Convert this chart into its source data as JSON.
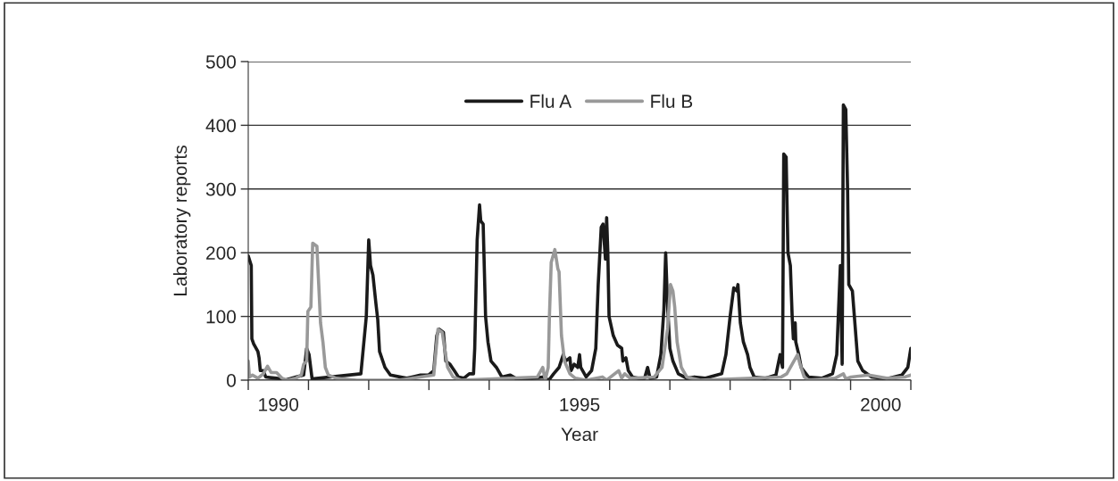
{
  "chart_data": {
    "type": "line",
    "xlabel": "Year",
    "ylabel": "Laboratory reports",
    "xlim": [
      1990,
      2001
    ],
    "ylim": [
      0,
      500
    ],
    "yticks": [
      0,
      100,
      200,
      300,
      400,
      500
    ],
    "xticks": [
      {
        "value": 1990,
        "label": null
      },
      {
        "value": 1991,
        "label": null
      },
      {
        "value": 1992,
        "label": null
      },
      {
        "value": 1993,
        "label": null
      },
      {
        "value": 1994,
        "label": null
      },
      {
        "value": 1995,
        "label": null
      },
      {
        "value": 1996,
        "label": null
      },
      {
        "value": 1997,
        "label": null
      },
      {
        "value": 1998,
        "label": null
      },
      {
        "value": 1999,
        "label": null
      },
      {
        "value": 2000,
        "label": null
      },
      {
        "value": 2001,
        "label": null
      },
      {
        "value": 1990.5,
        "label": "1990"
      },
      {
        "value": 1995.5,
        "label": "1995"
      },
      {
        "value": 2000.5,
        "label": "2000"
      }
    ],
    "grid": "y",
    "legend": "top",
    "line_style": "solid",
    "marker": "none",
    "series": [
      {
        "name": "Flu A",
        "color": "#1a1a1a",
        "x": [
          1990.0,
          1990.05,
          1990.06,
          1990.09,
          1990.16,
          1990.18,
          1990.2,
          1990.25,
          1990.29,
          1990.47,
          1990.61,
          1990.79,
          1990.92,
          1990.97,
          1991.01,
          1991.06,
          1991.87,
          1991.96,
          1992.0,
          1992.03,
          1992.07,
          1992.12,
          1992.15,
          1992.18,
          1992.27,
          1992.36,
          1992.63,
          1992.72,
          1992.86,
          1992.99,
          1993.08,
          1993.13,
          1993.17,
          1993.24,
          1993.28,
          1993.35,
          1993.42,
          1993.49,
          1993.58,
          1993.67,
          1993.74,
          1993.76,
          1993.8,
          1993.84,
          1993.86,
          1993.9,
          1993.94,
          1993.98,
          1994.03,
          1994.12,
          1994.21,
          1994.35,
          1994.44,
          1994.71,
          1994.89,
          1994.99,
          1995.07,
          1995.16,
          1995.23,
          1995.27,
          1995.34,
          1995.36,
          1995.41,
          1995.47,
          1995.5,
          1995.52,
          1995.61,
          1995.7,
          1995.77,
          1995.81,
          1995.86,
          1995.89,
          1995.93,
          1995.95,
          1995.97,
          1995.99,
          1996.06,
          1996.13,
          1996.2,
          1996.22,
          1996.27,
          1996.31,
          1996.38,
          1996.47,
          1996.58,
          1996.63,
          1996.67,
          1996.78,
          1996.85,
          1996.9,
          1996.93,
          1996.96,
          1997.0,
          1997.05,
          1997.14,
          1997.28,
          1997.41,
          1997.59,
          1997.86,
          1997.93,
          1998.0,
          1998.06,
          1998.11,
          1998.13,
          1998.17,
          1998.22,
          1998.29,
          1998.33,
          1998.4,
          1998.58,
          1998.76,
          1998.83,
          1998.87,
          1998.89,
          1998.93,
          1998.96,
          1999.0,
          1999.03,
          1999.05,
          1999.08,
          1999.09,
          1999.14,
          1999.18,
          1999.3,
          1999.52,
          1999.7,
          1999.77,
          1999.83,
          1999.86,
          1999.88,
          1999.92,
          1999.95,
          1999.97,
          2000.03,
          2000.12,
          2000.2,
          2000.35,
          2000.6,
          2000.85,
          2000.95,
          2001.0
        ],
        "values": [
          195,
          180,
          65,
          57,
          45,
          35,
          15,
          15,
          5,
          3,
          0,
          5,
          8,
          50,
          40,
          2,
          10,
          100,
          220,
          180,
          165,
          120,
          95,
          45,
          20,
          8,
          3,
          5,
          8,
          8,
          15,
          70,
          80,
          75,
          30,
          25,
          15,
          5,
          3,
          10,
          10,
          50,
          220,
          275,
          250,
          245,
          100,
          60,
          30,
          20,
          5,
          8,
          3,
          3,
          5,
          0,
          10,
          20,
          40,
          30,
          35,
          15,
          25,
          20,
          40,
          20,
          5,
          15,
          50,
          150,
          240,
          245,
          190,
          255,
          200,
          100,
          70,
          55,
          50,
          30,
          35,
          15,
          5,
          3,
          3,
          20,
          3,
          5,
          40,
          110,
          200,
          120,
          50,
          30,
          10,
          3,
          5,
          3,
          10,
          40,
          100,
          145,
          140,
          150,
          90,
          60,
          40,
          20,
          5,
          3,
          8,
          40,
          20,
          355,
          350,
          200,
          180,
          100,
          65,
          90,
          60,
          40,
          20,
          5,
          3,
          10,
          40,
          180,
          25,
          432,
          425,
          300,
          150,
          140,
          30,
          15,
          5,
          2,
          8,
          20,
          50
        ]
      },
      {
        "name": "Flu B",
        "color": "#999999",
        "x": [
          1990.0,
          1990.02,
          1990.07,
          1990.16,
          1990.25,
          1990.32,
          1990.38,
          1990.47,
          1990.56,
          1990.65,
          1990.79,
          1990.88,
          1990.92,
          1990.97,
          1990.99,
          1991.04,
          1991.07,
          1991.14,
          1991.17,
          1991.2,
          1991.24,
          1991.28,
          1991.33,
          1991.46,
          1991.8,
          1992.5,
          1993.08,
          1993.13,
          1993.15,
          1993.22,
          1993.26,
          1993.31,
          1993.4,
          1993.53,
          1994.8,
          1994.89,
          1994.93,
          1994.98,
          1995.0,
          1995.03,
          1995.09,
          1995.14,
          1995.16,
          1995.2,
          1995.25,
          1995.34,
          1995.43,
          1995.61,
          1995.88,
          1995.95,
          1996.15,
          1996.2,
          1996.25,
          1996.34,
          1996.74,
          1996.87,
          1996.96,
          1997.01,
          1997.05,
          1997.08,
          1997.12,
          1997.19,
          1997.28,
          1997.5,
          1998.85,
          1998.94,
          1999.03,
          1999.12,
          1999.16,
          1999.23,
          1999.3,
          1999.74,
          1999.88,
          1999.92,
          2000.01,
          2000.3,
          2000.6,
          2000.9,
          2001.0
        ],
        "values": [
          30,
          5,
          8,
          3,
          10,
          22,
          12,
          12,
          3,
          0,
          3,
          8,
          25,
          30,
          108,
          115,
          215,
          210,
          150,
          90,
          60,
          20,
          8,
          3,
          0,
          0,
          8,
          60,
          80,
          75,
          50,
          20,
          5,
          0,
          5,
          20,
          0,
          20,
          100,
          185,
          205,
          175,
          170,
          70,
          30,
          10,
          3,
          0,
          5,
          0,
          15,
          3,
          10,
          3,
          5,
          20,
          80,
          150,
          140,
          115,
          60,
          20,
          5,
          0,
          5,
          10,
          25,
          40,
          25,
          5,
          0,
          3,
          10,
          2,
          5,
          8,
          3,
          5,
          8
        ]
      }
    ]
  }
}
